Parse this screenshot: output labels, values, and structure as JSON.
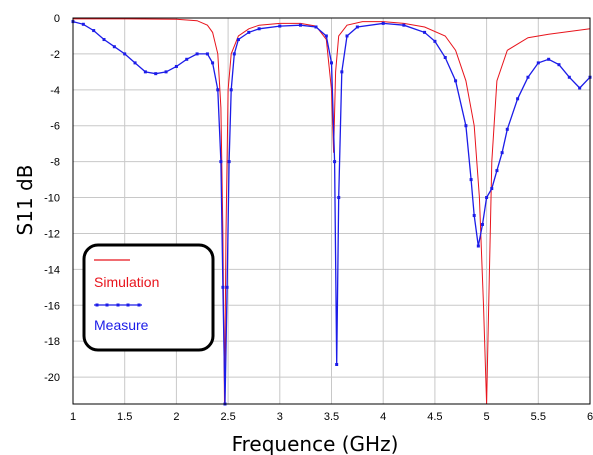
{
  "chart_data": {
    "type": "line",
    "xlabel": "Frequence (GHz)",
    "ylabel": "S11 dB",
    "xlim": [
      1,
      6
    ],
    "ylim": [
      -21.5,
      0
    ],
    "x_ticks": [
      1,
      1.5,
      2,
      2.5,
      3,
      3.5,
      4,
      4.5,
      5,
      5.5,
      6
    ],
    "x_tick_labels": [
      "1",
      "1.5",
      "2",
      "2.5",
      "3",
      "3.5",
      "4",
      "4.5",
      "5",
      "5.5",
      "6"
    ],
    "y_ticks": [
      0,
      -2,
      -4,
      -6,
      -8,
      -10,
      -12,
      -14,
      -16,
      -18,
      -20
    ],
    "y_tick_labels": [
      "0",
      "-2",
      "-4",
      "-6",
      "-8",
      "-10",
      "-12",
      "-14",
      "-16",
      "-18",
      "-20"
    ],
    "grid": true,
    "legend_position": "bottom-left",
    "series": [
      {
        "name": "Simulation",
        "color": "#e8141c",
        "style": "line",
        "points": [
          [
            1.0,
            -0.05
          ],
          [
            1.5,
            -0.05
          ],
          [
            2.0,
            -0.07
          ],
          [
            2.2,
            -0.15
          ],
          [
            2.3,
            -0.4
          ],
          [
            2.35,
            -0.8
          ],
          [
            2.4,
            -2.0
          ],
          [
            2.43,
            -5.0
          ],
          [
            2.45,
            -12.0
          ],
          [
            2.465,
            -21.5
          ],
          [
            2.48,
            -12.0
          ],
          [
            2.5,
            -4.0
          ],
          [
            2.53,
            -2.0
          ],
          [
            2.6,
            -1.0
          ],
          [
            2.7,
            -0.6
          ],
          [
            2.8,
            -0.4
          ],
          [
            3.0,
            -0.3
          ],
          [
            3.2,
            -0.3
          ],
          [
            3.35,
            -0.45
          ],
          [
            3.45,
            -1.2
          ],
          [
            3.5,
            -4.0
          ],
          [
            3.52,
            -7.5
          ],
          [
            3.54,
            -3.0
          ],
          [
            3.57,
            -1.0
          ],
          [
            3.65,
            -0.4
          ],
          [
            3.8,
            -0.2
          ],
          [
            4.0,
            -0.2
          ],
          [
            4.2,
            -0.3
          ],
          [
            4.4,
            -0.5
          ],
          [
            4.6,
            -1.0
          ],
          [
            4.7,
            -1.8
          ],
          [
            4.8,
            -3.5
          ],
          [
            4.88,
            -6.0
          ],
          [
            4.93,
            -10.0
          ],
          [
            4.97,
            -16.0
          ],
          [
            5.0,
            -21.5
          ],
          [
            5.02,
            -16.0
          ],
          [
            5.05,
            -8.0
          ],
          [
            5.1,
            -3.5
          ],
          [
            5.2,
            -1.8
          ],
          [
            5.4,
            -1.1
          ],
          [
            5.6,
            -0.9
          ],
          [
            5.8,
            -0.75
          ],
          [
            6.0,
            -0.6
          ]
        ]
      },
      {
        "name": "Measure",
        "color": "#1c1ce8",
        "style": "line-markers",
        "points": [
          [
            1.0,
            -0.2
          ],
          [
            1.1,
            -0.35
          ],
          [
            1.2,
            -0.7
          ],
          [
            1.3,
            -1.2
          ],
          [
            1.4,
            -1.6
          ],
          [
            1.5,
            -2.0
          ],
          [
            1.6,
            -2.5
          ],
          [
            1.7,
            -3.0
          ],
          [
            1.8,
            -3.1
          ],
          [
            1.9,
            -3.0
          ],
          [
            2.0,
            -2.7
          ],
          [
            2.1,
            -2.3
          ],
          [
            2.2,
            -2.0
          ],
          [
            2.3,
            -2.0
          ],
          [
            2.35,
            -2.5
          ],
          [
            2.4,
            -4.0
          ],
          [
            2.43,
            -8.0
          ],
          [
            2.45,
            -15.0
          ],
          [
            2.47,
            -21.5
          ],
          [
            2.49,
            -15.0
          ],
          [
            2.51,
            -8.0
          ],
          [
            2.53,
            -4.0
          ],
          [
            2.56,
            -2.0
          ],
          [
            2.6,
            -1.2
          ],
          [
            2.7,
            -0.8
          ],
          [
            2.8,
            -0.6
          ],
          [
            3.0,
            -0.45
          ],
          [
            3.2,
            -0.4
          ],
          [
            3.35,
            -0.5
          ],
          [
            3.45,
            -1.0
          ],
          [
            3.5,
            -2.5
          ],
          [
            3.53,
            -8.0
          ],
          [
            3.55,
            -19.3
          ],
          [
            3.57,
            -10.0
          ],
          [
            3.6,
            -3.0
          ],
          [
            3.65,
            -1.0
          ],
          [
            3.75,
            -0.5
          ],
          [
            4.0,
            -0.3
          ],
          [
            4.2,
            -0.4
          ],
          [
            4.4,
            -0.8
          ],
          [
            4.5,
            -1.3
          ],
          [
            4.6,
            -2.2
          ],
          [
            4.7,
            -3.5
          ],
          [
            4.8,
            -6.0
          ],
          [
            4.85,
            -9.0
          ],
          [
            4.88,
            -11.0
          ],
          [
            4.92,
            -12.7
          ],
          [
            4.96,
            -11.5
          ],
          [
            5.0,
            -10.0
          ],
          [
            5.05,
            -9.5
          ],
          [
            5.1,
            -8.5
          ],
          [
            5.15,
            -7.5
          ],
          [
            5.2,
            -6.2
          ],
          [
            5.3,
            -4.5
          ],
          [
            5.4,
            -3.3
          ],
          [
            5.5,
            -2.5
          ],
          [
            5.6,
            -2.3
          ],
          [
            5.7,
            -2.6
          ],
          [
            5.8,
            -3.3
          ],
          [
            5.9,
            -3.9
          ],
          [
            6.0,
            -3.3
          ]
        ]
      }
    ]
  }
}
